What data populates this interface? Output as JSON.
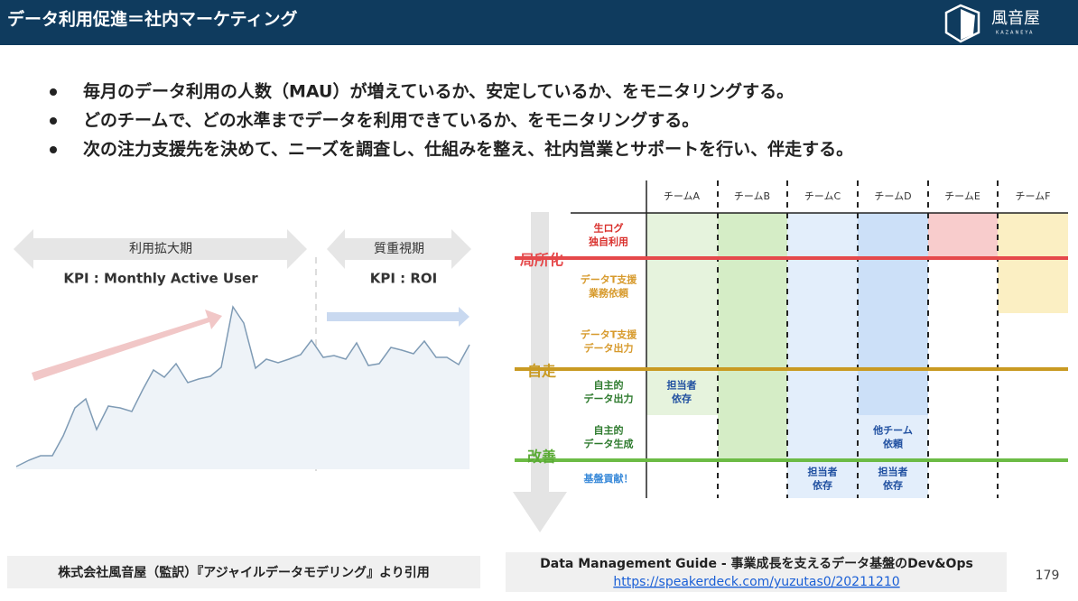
{
  "header": {
    "title": "データ利用促進＝社内マーケティング",
    "logo": "風音屋",
    "logo_sub": "KAZANEYA"
  },
  "bullets": [
    "毎月のデータ利用の人数（MAU）が増えているか、安定しているか、をモニタリングする。",
    "どのチームで、どの水準までデータを利用できているか、をモニタリングする。",
    "次の注力支援先を決めて、ニーズを調査し、仕組みを整え、社内営業とサポートを行い、伴走する。"
  ],
  "phases": [
    {
      "label": "利用拡大期",
      "kpi": "KPI : Monthly Active User"
    },
    {
      "label": "質重視期",
      "kpi": "KPI : ROI"
    }
  ],
  "matrix": {
    "columns": [
      "チームA",
      "チームB",
      "チームC",
      "チームD",
      "チームE",
      "チームF"
    ],
    "rows": [
      {
        "lines": [
          "生ログ",
          "独自利用"
        ]
      },
      {
        "lines": [
          "データT支援",
          "業務依頼"
        ]
      },
      {
        "lines": [
          "データT支援",
          "データ出力"
        ]
      },
      {
        "lines": [
          "自主的",
          "データ出力"
        ]
      },
      {
        "lines": [
          "自主的",
          "データ生成"
        ]
      },
      {
        "lines": [
          "基盤貢献！"
        ]
      }
    ],
    "stages": [
      "局所化",
      "自走",
      "改善"
    ],
    "notes": [
      {
        "lines": [
          "担当者",
          "依存"
        ]
      },
      {
        "lines": [
          "他チーム",
          "依頼"
        ]
      },
      {
        "lines": [
          "担当者",
          "依存"
        ]
      },
      {
        "lines": [
          "担当者",
          "依存"
        ]
      }
    ]
  },
  "footer": {
    "citation": "株式会社風音屋（監訳）『アジャイルデータモデリング』より引用",
    "source": "Data Management Guide - 事業成長を支えるデータ基盤のDev&Ops",
    "link": "https://speakerdeck.com/yuzutas0/20211210",
    "page": "179"
  }
}
